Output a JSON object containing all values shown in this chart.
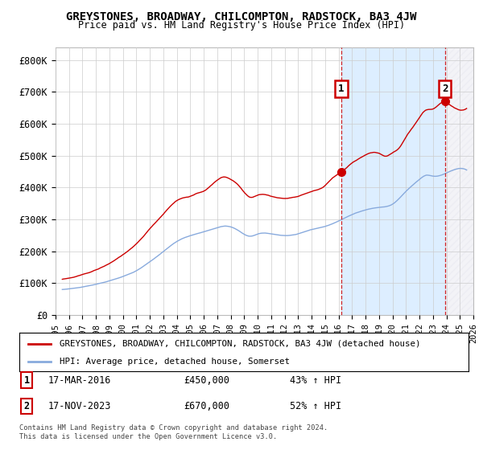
{
  "title": "GREYSTONES, BROADWAY, CHILCOMPTON, RADSTOCK, BA3 4JW",
  "subtitle": "Price paid vs. HM Land Registry's House Price Index (HPI)",
  "ylabel_ticks": [
    "£0",
    "£100K",
    "£200K",
    "£300K",
    "£400K",
    "£500K",
    "£600K",
    "£700K",
    "£800K"
  ],
  "ytick_values": [
    0,
    100000,
    200000,
    300000,
    400000,
    500000,
    600000,
    700000,
    800000
  ],
  "ylim": [
    0,
    840000
  ],
  "xlim_start": 1995.25,
  "xlim_end": 2026.0,
  "red_color": "#cc0000",
  "blue_color": "#88aadd",
  "shade_color": "#ddeeff",
  "dashed_color": "#cc0000",
  "marker1_x": 2016.21,
  "marker1_y": 450000,
  "marker2_x": 2023.88,
  "marker2_y": 670000,
  "annotation1": {
    "label": "1",
    "date": "17-MAR-2016",
    "price": "£450,000",
    "hpi": "43% ↑ HPI"
  },
  "annotation2": {
    "label": "2",
    "date": "17-NOV-2023",
    "price": "£670,000",
    "hpi": "52% ↑ HPI"
  },
  "legend_red": "GREYSTONES, BROADWAY, CHILCOMPTON, RADSTOCK, BA3 4JW (detached house)",
  "legend_blue": "HPI: Average price, detached house, Somerset",
  "footer": "Contains HM Land Registry data © Crown copyright and database right 2024.\nThis data is licensed under the Open Government Licence v3.0.",
  "background_color": "#ffffff",
  "grid_color": "#cccccc"
}
